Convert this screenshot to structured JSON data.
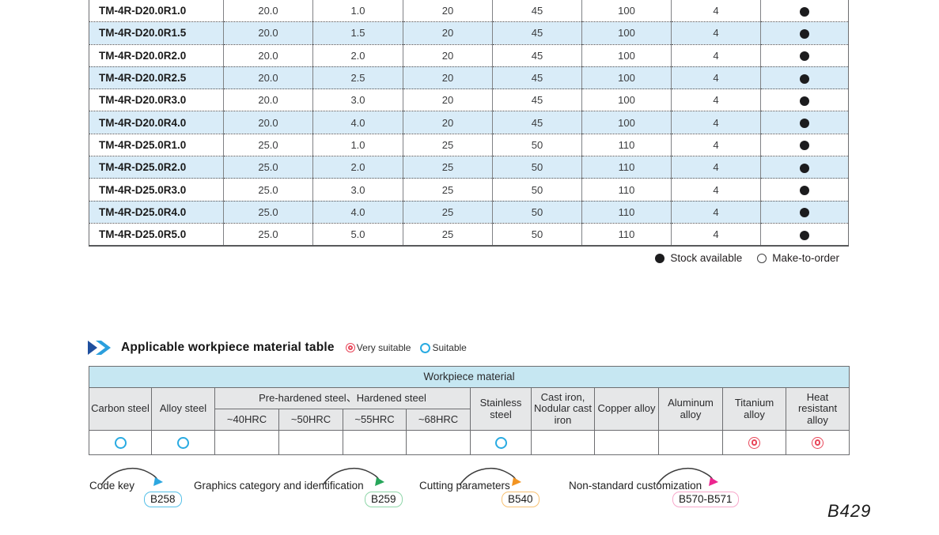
{
  "spec_table": {
    "rows": [
      {
        "model": "TM-4R-D20.0R1.0",
        "values": [
          "20.0",
          "1.0",
          "20",
          "45",
          "100",
          "4"
        ],
        "stock": "available"
      },
      {
        "model": "TM-4R-D20.0R1.5",
        "values": [
          "20.0",
          "1.5",
          "20",
          "45",
          "100",
          "4"
        ],
        "stock": "available"
      },
      {
        "model": "TM-4R-D20.0R2.0",
        "values": [
          "20.0",
          "2.0",
          "20",
          "45",
          "100",
          "4"
        ],
        "stock": "available"
      },
      {
        "model": "TM-4R-D20.0R2.5",
        "values": [
          "20.0",
          "2.5",
          "20",
          "45",
          "100",
          "4"
        ],
        "stock": "available"
      },
      {
        "model": "TM-4R-D20.0R3.0",
        "values": [
          "20.0",
          "3.0",
          "20",
          "45",
          "100",
          "4"
        ],
        "stock": "available"
      },
      {
        "model": "TM-4R-D20.0R4.0",
        "values": [
          "20.0",
          "4.0",
          "20",
          "45",
          "100",
          "4"
        ],
        "stock": "available"
      },
      {
        "model": "TM-4R-D25.0R1.0",
        "values": [
          "25.0",
          "1.0",
          "25",
          "50",
          "110",
          "4"
        ],
        "stock": "available"
      },
      {
        "model": "TM-4R-D25.0R2.0",
        "values": [
          "25.0",
          "2.0",
          "25",
          "50",
          "110",
          "4"
        ],
        "stock": "available"
      },
      {
        "model": "TM-4R-D25.0R3.0",
        "values": [
          "25.0",
          "3.0",
          "25",
          "50",
          "110",
          "4"
        ],
        "stock": "available"
      },
      {
        "model": "TM-4R-D25.0R4.0",
        "values": [
          "25.0",
          "4.0",
          "25",
          "50",
          "110",
          "4"
        ],
        "stock": "available"
      },
      {
        "model": "TM-4R-D25.0R5.0",
        "values": [
          "25.0",
          "5.0",
          "25",
          "50",
          "110",
          "4"
        ],
        "stock": "available"
      }
    ],
    "legend": {
      "stock_available": "Stock available",
      "make_to_order": "Make-to-order"
    }
  },
  "material_section": {
    "title": "Applicable workpiece material table",
    "legend": {
      "very_suitable": "Very suitable",
      "suitable": "Suitable"
    },
    "table": {
      "header": "Workpiece material",
      "col_carbon": "Carbon steel",
      "col_alloy": "Alloy steel",
      "group_hardened": "Pre-hardened steel、Hardened steel",
      "sub_hrc": [
        "~40HRC",
        "~50HRC",
        "~55HRC",
        "~68HRC"
      ],
      "col_stainless": "Stainless steel",
      "col_cast_iron": "Cast iron, Nodular cast iron",
      "col_copper": "Copper alloy",
      "col_aluminum": "Aluminum alloy",
      "col_titanium": "Titanium alloy",
      "col_heat": "Heat resistant alloy",
      "ratings": [
        "suitable",
        "suitable",
        "",
        "",
        "",
        "",
        "suitable",
        "",
        "",
        "",
        "very_suitable",
        "very_suitable"
      ]
    }
  },
  "footer_links": [
    {
      "label": "Code key",
      "page": "B258"
    },
    {
      "label": "Graphics category and identification",
      "page": "B259"
    },
    {
      "label": "Cutting parameters",
      "page": "B540"
    },
    {
      "label": "Non-standard customization",
      "page": "B570-B571"
    }
  ],
  "page_number": "B429",
  "colors": {
    "suitable": "#29abe2",
    "very-suitable": "#e8475a",
    "mat-title-bg": "#c6e7f2",
    "link-blue": "#2da7e0",
    "link-blue-border": "#55c0e8",
    "link-green": "#27a65a",
    "link-green-border": "#8fd6a9",
    "link-orange": "#f29422",
    "link-orange-border": "#f7c173",
    "link-pink": "#ec268f",
    "link-pink-border": "#f7a8cb"
  }
}
